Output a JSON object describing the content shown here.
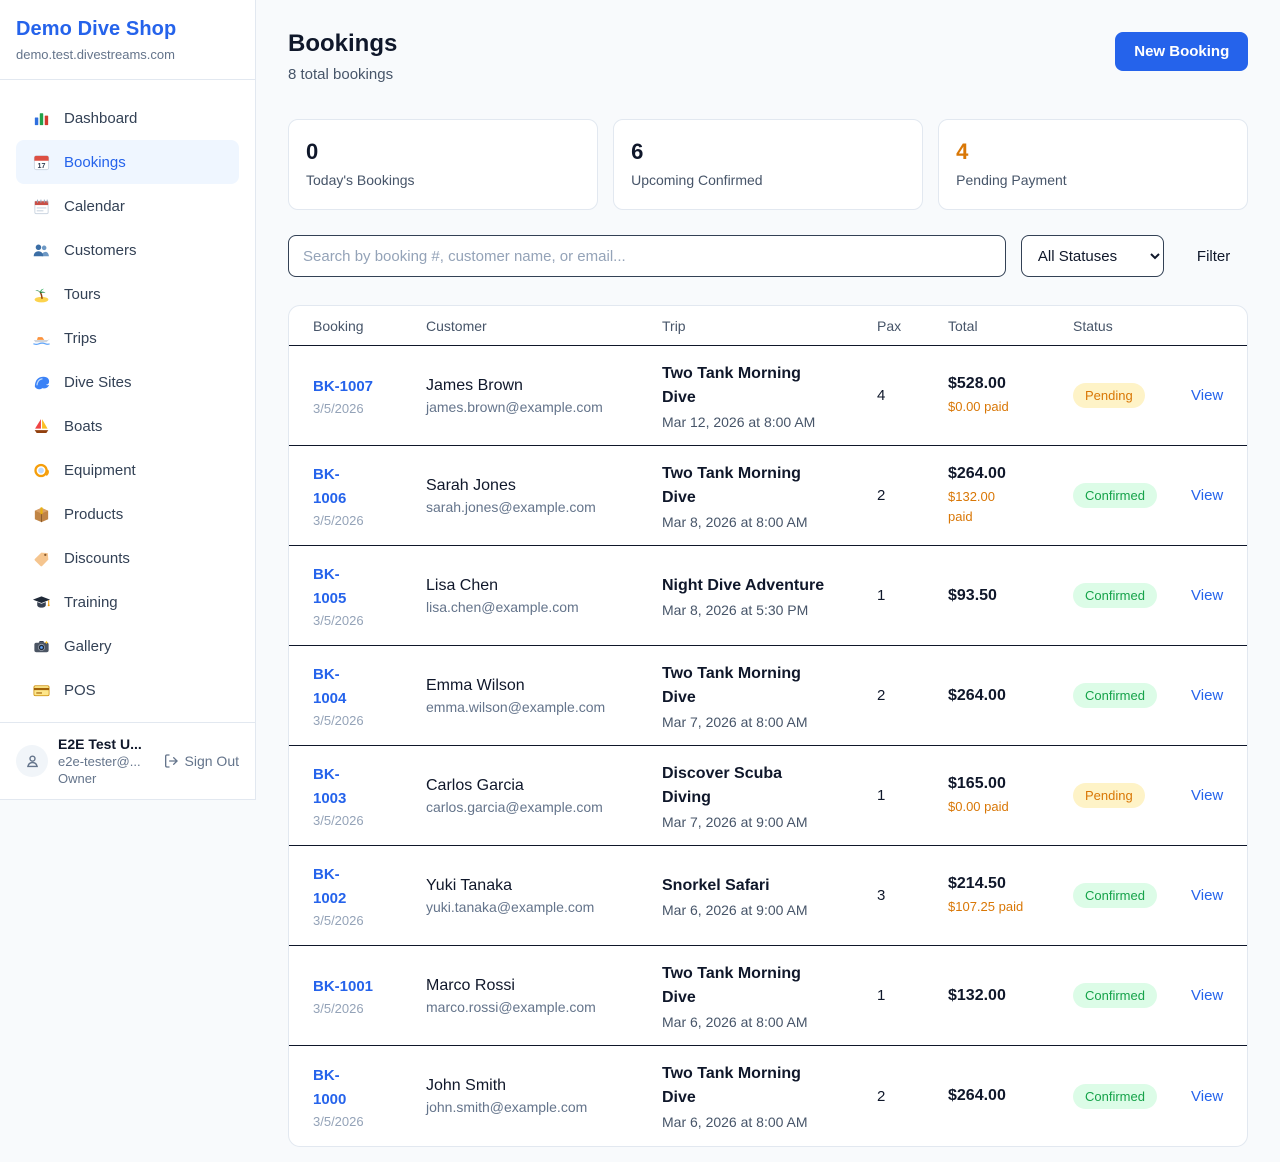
{
  "brand": {
    "name": "Demo Dive Shop",
    "domain": "demo.test.divestreams.com"
  },
  "colors": {
    "accent_blue": "#2563eb",
    "pending_orange": "#d97706",
    "confirmed_green": "#16a34a",
    "row_border": "#0f172a"
  },
  "sidebar": {
    "items": [
      {
        "label": "Dashboard",
        "icon": "bar-chart-icon",
        "active": false
      },
      {
        "label": "Bookings",
        "icon": "calendar-icon",
        "active": true
      },
      {
        "label": "Calendar",
        "icon": "spiral-calendar-icon",
        "active": false
      },
      {
        "label": "Customers",
        "icon": "people-icon",
        "active": false
      },
      {
        "label": "Tours",
        "icon": "island-icon",
        "active": false
      },
      {
        "label": "Trips",
        "icon": "speedboat-icon",
        "active": false
      },
      {
        "label": "Dive Sites",
        "icon": "wave-icon",
        "active": false
      },
      {
        "label": "Boats",
        "icon": "sailboat-icon",
        "active": false
      },
      {
        "label": "Equipment",
        "icon": "diving-mask-icon",
        "active": false
      },
      {
        "label": "Products",
        "icon": "package-icon",
        "active": false
      },
      {
        "label": "Discounts",
        "icon": "tag-icon",
        "active": false
      },
      {
        "label": "Training",
        "icon": "graduation-cap-icon",
        "active": false
      },
      {
        "label": "Gallery",
        "icon": "camera-icon",
        "active": false
      },
      {
        "label": "POS",
        "icon": "credit-card-icon",
        "active": false
      }
    ],
    "user": {
      "name": "E2E Test U...",
      "email": "e2e-tester@...",
      "role": "Owner",
      "sign_out": "Sign Out"
    }
  },
  "header": {
    "title": "Bookings",
    "subtitle": "8 total bookings",
    "new_booking": "New Booking"
  },
  "stats": [
    {
      "value": "0",
      "label": "Today's Bookings",
      "accent": false
    },
    {
      "value": "6",
      "label": "Upcoming Confirmed",
      "accent": false
    },
    {
      "value": "4",
      "label": "Pending Payment",
      "accent": true
    }
  ],
  "filters": {
    "search_placeholder": "Search by booking #, customer name, or email...",
    "status_select": "All Statuses",
    "filter_label": "Filter"
  },
  "table": {
    "columns": [
      "Booking",
      "Customer",
      "Trip",
      "Pax",
      "Total",
      "Status"
    ],
    "view_label": "View",
    "rows": [
      {
        "id": "BK-1007",
        "date": "3/5/2026",
        "customer": "James Brown",
        "email": "james.brown@example.com",
        "trip": "Two Tank Morning\nDive",
        "trip_time": "Mar 12, 2026 at 8:00 AM",
        "pax": "4",
        "total": "$528.00",
        "paid": "$0.00 paid",
        "status": "Pending"
      },
      {
        "id": "BK-\n1006",
        "date": "3/5/2026",
        "customer": "Sarah Jones",
        "email": "sarah.jones@example.com",
        "trip": "Two Tank Morning\nDive",
        "trip_time": "Mar 8, 2026 at 8:00 AM",
        "pax": "2",
        "total": "$264.00",
        "paid": "$132.00\npaid",
        "status": "Confirmed"
      },
      {
        "id": "BK-\n1005",
        "date": "3/5/2026",
        "customer": "Lisa Chen",
        "email": "lisa.chen@example.com",
        "trip": "Night Dive Adventure",
        "trip_time": "Mar 8, 2026 at 5:30 PM",
        "pax": "1",
        "total": "$93.50",
        "paid": "",
        "status": "Confirmed"
      },
      {
        "id": "BK-\n1004",
        "date": "3/5/2026",
        "customer": "Emma Wilson",
        "email": "emma.wilson@example.com",
        "trip": "Two Tank Morning\nDive",
        "trip_time": "Mar 7, 2026 at 8:00 AM",
        "pax": "2",
        "total": "$264.00",
        "paid": "",
        "status": "Confirmed"
      },
      {
        "id": "BK-\n1003",
        "date": "3/5/2026",
        "customer": "Carlos Garcia",
        "email": "carlos.garcia@example.com",
        "trip": "Discover Scuba\nDiving",
        "trip_time": "Mar 7, 2026 at 9:00 AM",
        "pax": "1",
        "total": "$165.00",
        "paid": "$0.00 paid",
        "status": "Pending"
      },
      {
        "id": "BK-\n1002",
        "date": "3/5/2026",
        "customer": "Yuki Tanaka",
        "email": "yuki.tanaka@example.com",
        "trip": "Snorkel Safari",
        "trip_time": "Mar 6, 2026 at 9:00 AM",
        "pax": "3",
        "total": "$214.50",
        "paid": "$107.25 paid",
        "status": "Confirmed"
      },
      {
        "id": "BK-1001",
        "date": "3/5/2026",
        "customer": "Marco Rossi",
        "email": "marco.rossi@example.com",
        "trip": "Two Tank Morning\nDive",
        "trip_time": "Mar 6, 2026 at 8:00 AM",
        "pax": "1",
        "total": "$132.00",
        "paid": "",
        "status": "Confirmed"
      },
      {
        "id": "BK-\n1000",
        "date": "3/5/2026",
        "customer": "John Smith",
        "email": "john.smith@example.com",
        "trip": "Two Tank Morning\nDive",
        "trip_time": "Mar 6, 2026 at 8:00 AM",
        "pax": "2",
        "total": "$264.00",
        "paid": "",
        "status": "Confirmed"
      }
    ]
  }
}
